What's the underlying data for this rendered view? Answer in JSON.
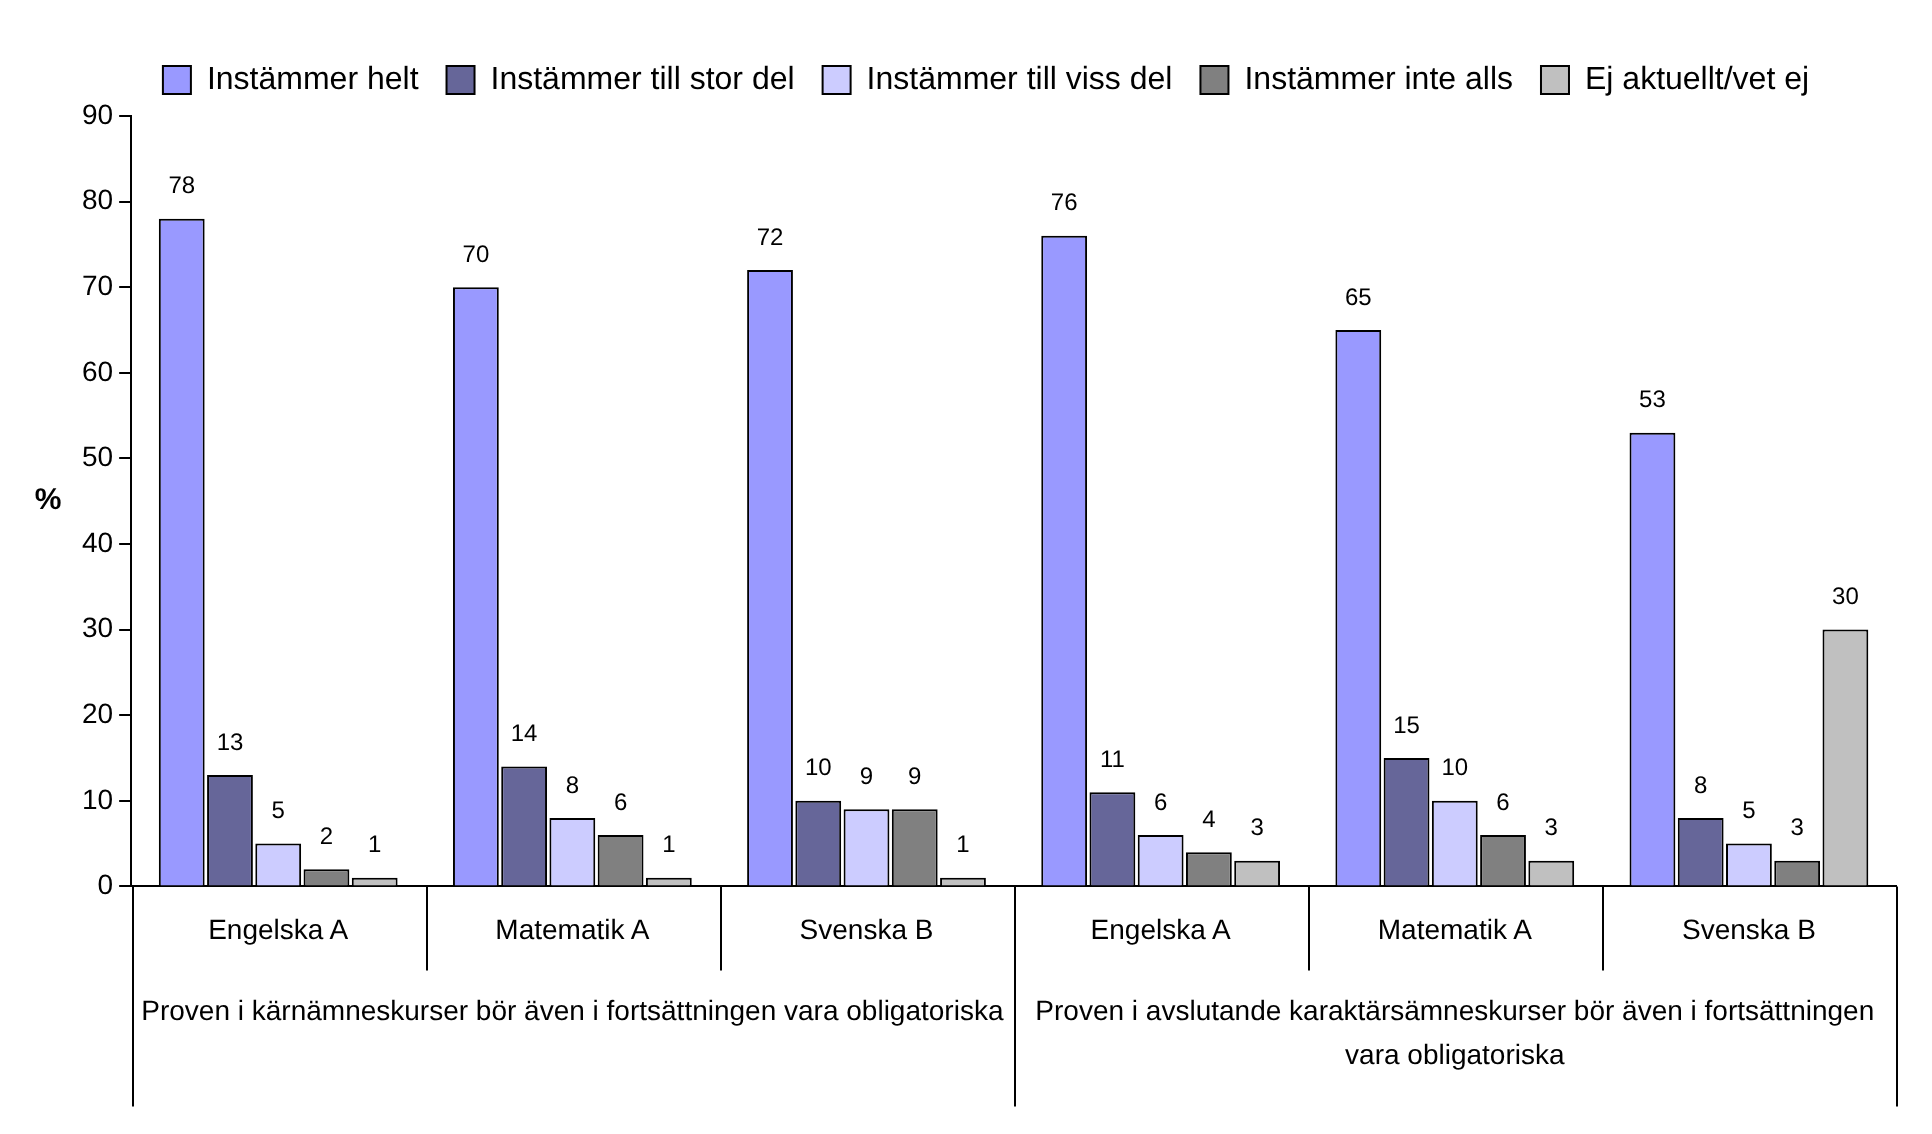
{
  "chart_data": {
    "type": "bar",
    "ylabel": "%",
    "categories": [
      "Engelska A",
      "Matematik A",
      "Svenska B",
      "Engelska A",
      "Matematik A",
      "Svenska B"
    ],
    "series": [
      {
        "name": "Instämmer helt",
        "color": "#9999ff",
        "values": [
          78,
          70,
          72,
          76,
          65,
          53
        ]
      },
      {
        "name": "Instämmer till stor del",
        "color": "#666699",
        "values": [
          13,
          14,
          10,
          11,
          15,
          8
        ]
      },
      {
        "name": "Instämmer till viss del",
        "color": "#ccccff",
        "values": [
          5,
          8,
          9,
          6,
          10,
          5
        ]
      },
      {
        "name": "Instämmer inte alls",
        "color": "#808080",
        "values": [
          2,
          6,
          9,
          4,
          6,
          3
        ]
      },
      {
        "name": "Ej aktuellt/vet ej",
        "color": "#c0c0c0",
        "values": [
          1,
          1,
          1,
          3,
          3,
          30
        ]
      }
    ],
    "ylim": [
      0,
      90
    ],
    "yticks": [
      0,
      10,
      20,
      30,
      40,
      50,
      60,
      70,
      80,
      90
    ],
    "grid": false,
    "legend": "top",
    "data_labels": true,
    "annotations": [
      "Proven i kärnämneskurser bör även i fortsättningen vara obligatoriska",
      "Proven i avslutande karaktärsämneskurser bör även i fortsättningen vara obligatoriska"
    ]
  }
}
